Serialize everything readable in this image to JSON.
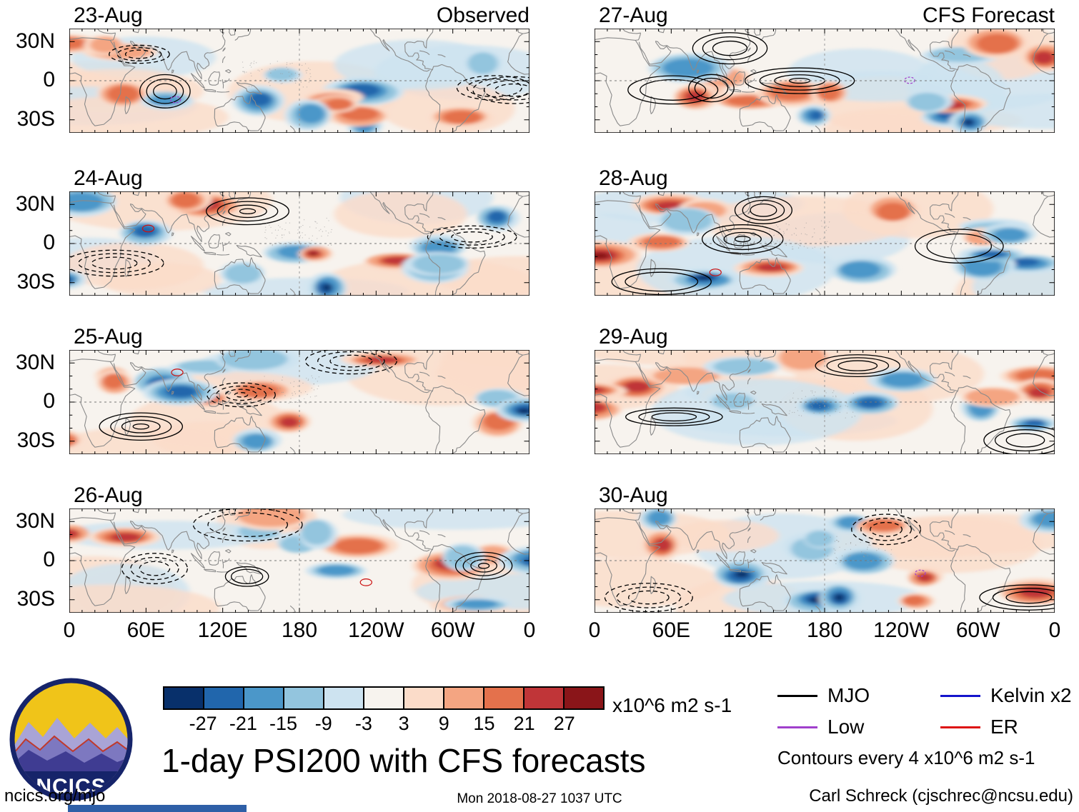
{
  "figure": {
    "title": "1-day PSI200 with CFS forecasts",
    "units_label": "x10^6 m2 s-1",
    "logo_text": "NCICS"
  },
  "panels": [
    {
      "date": "23-Aug",
      "corner": "Observed"
    },
    {
      "date": "24-Aug",
      "corner": ""
    },
    {
      "date": "25-Aug",
      "corner": ""
    },
    {
      "date": "26-Aug",
      "corner": ""
    },
    {
      "date": "27-Aug",
      "corner": "CFS Forecast"
    },
    {
      "date": "28-Aug",
      "corner": ""
    },
    {
      "date": "29-Aug",
      "corner": ""
    },
    {
      "date": "30-Aug",
      "corner": ""
    }
  ],
  "axis": {
    "x_tick_labels": [
      "0",
      "60E",
      "120E",
      "180",
      "120W",
      "60W",
      "0"
    ],
    "y_tick_labels": [
      "30N",
      "0",
      "30S"
    ]
  },
  "colorbar": {
    "tick_labels": [
      "-27",
      "-21",
      "-15",
      "-9",
      "-3",
      "3",
      "9",
      "15",
      "21",
      "27"
    ],
    "colors": [
      "#08306b",
      "#2166ac",
      "#4b97c9",
      "#93c5de",
      "#cde3f0",
      "#f7f3ee",
      "#fbdcc9",
      "#f4a582",
      "#e4714c",
      "#c03538",
      "#8a1519"
    ]
  },
  "legend": {
    "items": [
      {
        "label": "MJO",
        "color": "#000000"
      },
      {
        "label": "Kelvin x2",
        "color": "#1414cc"
      },
      {
        "label": "Low",
        "color": "#a040cc"
      },
      {
        "label": "ER",
        "color": "#dd1111"
      }
    ],
    "note": "Contours every 4 x10^6 m2 s-1"
  },
  "footer": {
    "left": "ncics.org/mjo",
    "center": "Mon 2018-08-27 1037 UTC",
    "right": "Carl Schreck (cjschrec@ncsu.edu)"
  },
  "chart_data": {
    "type": "heatmap",
    "title": "1-day PSI200 with CFS forecasts",
    "variable": "PSI200",
    "units": "x10^6 m2 s-1",
    "colorbar_levels": [
      -27,
      -21,
      -15,
      -9,
      -3,
      3,
      9,
      15,
      21,
      27
    ],
    "contour_interval": "Contours every 4 x10^6 m2 s-1",
    "x_ticks": [
      "0",
      "60E",
      "120E",
      "180",
      "120W",
      "60W",
      "0"
    ],
    "y_ticks": [
      "30N",
      "0",
      "30S"
    ],
    "columns": [
      {
        "header": "Observed",
        "dates": [
          "23-Aug",
          "24-Aug",
          "25-Aug",
          "26-Aug"
        ]
      },
      {
        "header": "CFS Forecast",
        "dates": [
          "27-Aug",
          "28-Aug",
          "29-Aug",
          "30-Aug"
        ]
      }
    ],
    "overlay_contours": [
      "MJO",
      "Kelvin x2",
      "Low",
      "ER"
    ]
  }
}
